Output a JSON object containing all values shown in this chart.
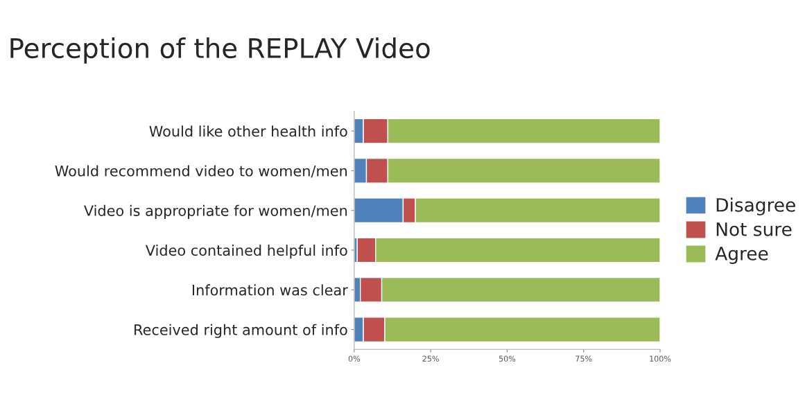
{
  "chart_data": {
    "type": "bar",
    "orientation": "horizontal",
    "stacked": true,
    "title": "Perception of the REPLAY Video",
    "categories": [
      "Would like other health info",
      "Would recommend video to women/men",
      "Video is appropriate for women/men",
      "Video contained helpful info",
      "Information was clear",
      "Received right amount of info"
    ],
    "series": [
      {
        "name": "Disagree",
        "color": "#4f81bd",
        "values": [
          3,
          4,
          16,
          1,
          2,
          3
        ]
      },
      {
        "name": "Not sure",
        "color": "#c0504d",
        "values": [
          8,
          7,
          4,
          6,
          7,
          7
        ]
      },
      {
        "name": "Agree",
        "color": "#9bbb59",
        "values": [
          89,
          89,
          80,
          93,
          91,
          90
        ]
      }
    ],
    "xlim": [
      0,
      100
    ],
    "xticks": [
      {
        "value": 0,
        "label": "0%"
      },
      {
        "value": 25,
        "label": "25%"
      },
      {
        "value": 50,
        "label": "50%"
      },
      {
        "value": 75,
        "label": "75%"
      },
      {
        "value": 100,
        "label": "100%"
      }
    ],
    "legend": "right",
    "grid": false
  }
}
